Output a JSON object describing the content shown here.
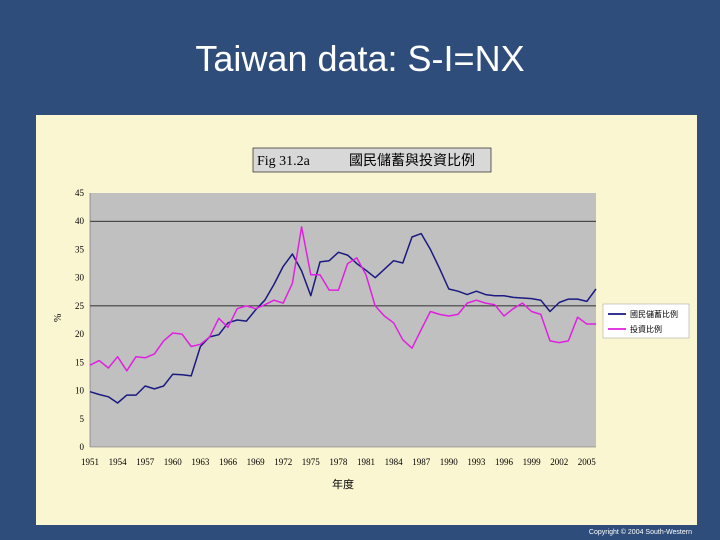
{
  "slide": {
    "title": "Taiwan data: S-I=NX",
    "copyright": "Copyright © 2004 South-Western"
  },
  "colors": {
    "background": "#2e4d7b",
    "panel": "#fbf6d2",
    "plot_area": "#c0c0c0",
    "savings_line": "#1a1a80",
    "investment_line": "#e020e0",
    "gridline": "#000000"
  },
  "chart_data": {
    "type": "line",
    "title_left": "Fig 31.2a",
    "title_right": "國民儲蓄與投資比例",
    "xlabel": "年度",
    "ylabel": "%",
    "ylim": [
      0,
      45
    ],
    "yticks": [
      0,
      5,
      10,
      15,
      20,
      25,
      30,
      35,
      40,
      45
    ],
    "xlim": [
      1951,
      2006
    ],
    "xtick_labels": [
      {
        "year": 1951,
        "label": "1951"
      },
      {
        "year": 1954,
        "label": "1954"
      },
      {
        "year": 1957,
        "label": "1957"
      },
      {
        "year": 1960,
        "label": "1960"
      },
      {
        "year": 1963,
        "label": "1963"
      },
      {
        "year": 1966,
        "label": "1966"
      },
      {
        "year": 1969,
        "label": "1969"
      },
      {
        "year": 1972,
        "label": "1972"
      },
      {
        "year": 1975,
        "label": "1975"
      },
      {
        "year": 1978,
        "label": "1978"
      },
      {
        "year": 1981,
        "label": "1981"
      },
      {
        "year": 1984,
        "label": "1984"
      },
      {
        "year": 1987,
        "label": "1987"
      },
      {
        "year": 1990,
        "label": "1990"
      },
      {
        "year": 1993,
        "label": "1993"
      },
      {
        "year": 1996,
        "label": "1996"
      },
      {
        "year": 1999,
        "label": "1999"
      },
      {
        "year": 2002,
        "label": "2002"
      },
      {
        "year": 2005,
        "label": "2005"
      }
    ],
    "gridlines": [
      25,
      40
    ],
    "legend_position": "right",
    "series": [
      {
        "name": "國民儲蓄比例",
        "color": "#1a1a80",
        "x": [
          1951,
          1952,
          1953,
          1954,
          1955,
          1956,
          1957,
          1958,
          1959,
          1960,
          1961,
          1962,
          1963,
          1964,
          1965,
          1966,
          1967,
          1968,
          1969,
          1970,
          1971,
          1972,
          1973,
          1974,
          1975,
          1976,
          1977,
          1978,
          1979,
          1980,
          1981,
          1982,
          1983,
          1984,
          1985,
          1986,
          1987,
          1988,
          1989,
          1990,
          1991,
          1992,
          1993,
          1994,
          1995,
          1996,
          1997,
          1998,
          1999,
          2000,
          2001,
          2002,
          2003,
          2004,
          2005,
          2006
        ],
        "values": [
          9.8,
          9.3,
          8.9,
          7.8,
          9.2,
          9.2,
          10.8,
          10.3,
          10.8,
          12.9,
          12.8,
          12.6,
          17.8,
          19.5,
          19.9,
          22.0,
          22.5,
          22.3,
          24.3,
          26.0,
          28.8,
          32.0,
          34.2,
          31.2,
          26.8,
          32.8,
          33.0,
          34.5,
          34.0,
          32.5,
          31.3,
          30.0,
          31.5,
          33.0,
          32.6,
          37.2,
          37.8,
          35.0,
          31.6,
          28.0,
          27.6,
          27.0,
          27.6,
          27.0,
          26.8,
          26.8,
          26.5,
          26.4,
          26.3,
          26.0,
          24.0,
          25.6,
          26.2,
          26.2,
          25.8,
          28.0
        ]
      },
      {
        "name": "投資比例",
        "color": "#e020e0",
        "x": [
          1951,
          1952,
          1953,
          1954,
          1955,
          1956,
          1957,
          1958,
          1959,
          1960,
          1961,
          1962,
          1963,
          1964,
          1965,
          1966,
          1967,
          1968,
          1969,
          1970,
          1971,
          1972,
          1973,
          1974,
          1975,
          1976,
          1977,
          1978,
          1979,
          1980,
          1981,
          1982,
          1983,
          1984,
          1985,
          1986,
          1987,
          1988,
          1989,
          1990,
          1991,
          1992,
          1993,
          1994,
          1995,
          1996,
          1997,
          1998,
          1999,
          2000,
          2001,
          2002,
          2003,
          2004,
          2005,
          2006
        ],
        "values": [
          14.5,
          15.3,
          14.0,
          16.0,
          13.5,
          16.0,
          15.8,
          16.5,
          18.8,
          20.2,
          20.0,
          17.8,
          18.2,
          19.5,
          22.8,
          21.2,
          24.5,
          25.0,
          24.5,
          25.2,
          26.0,
          25.5,
          29.0,
          39.0,
          30.5,
          30.5,
          27.8,
          27.8,
          32.5,
          33.5,
          30.5,
          25.0,
          23.2,
          22.0,
          19.0,
          17.5,
          20.8,
          24.0,
          23.5,
          23.2,
          23.5,
          25.5,
          26.0,
          25.5,
          25.2,
          23.2,
          24.5,
          25.5,
          24.0,
          23.5,
          18.8,
          18.5,
          18.8,
          23.0,
          21.8,
          21.8
        ]
      }
    ]
  }
}
